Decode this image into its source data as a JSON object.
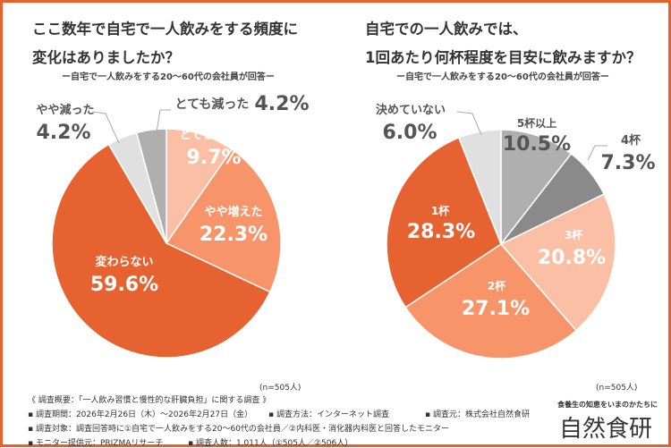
{
  "colors": {
    "border": "#e8602c",
    "deep_orange": "#e66231",
    "salmon": "#f79469",
    "light_salmon": "#fbbfa6",
    "gray": "#afafaf",
    "dark_gray": "#8a8a8a",
    "light_gray": "#e0e0e0",
    "text": "#4a4a4a"
  },
  "chart_data": [
    {
      "type": "pie",
      "title": "ここ数年で自宅で一人飲みをする頻度に変化はありましたか？",
      "title_lines": [
        "ここ数年で自宅で一人飲みをする頻度に",
        "変化はありましたか？"
      ],
      "subtitle": "ー自宅で一人飲みをする20〜60代の会社員が回答ー",
      "n_label": "(n=505人)",
      "slices": [
        {
          "label": "とても増えた",
          "value": 9.7,
          "display": "9.7%",
          "color": "#fbbfa6"
        },
        {
          "label": "やや増えた",
          "value": 22.3,
          "display": "22.3%",
          "color": "#f79469"
        },
        {
          "label": "変わらない",
          "value": 59.6,
          "display": "59.6%",
          "color": "#e66231"
        },
        {
          "label": "やや減った",
          "value": 4.2,
          "display": "4.2%",
          "color": "#e0e0e0"
        },
        {
          "label": "とても減った",
          "value": 4.2,
          "display": "4.2%",
          "color": "#afafaf"
        }
      ]
    },
    {
      "type": "pie",
      "title": "自宅での一人飲みでは、1回あたり何杯程度を目安に飲みますか？",
      "title_lines": [
        "自宅での一人飲みでは、",
        "1回あたり何杯程度を目安に飲みますか？"
      ],
      "subtitle": "ー自宅で一人飲みをする20〜60代の会社員が回答ー",
      "n_label": "(n=505人)",
      "slices": [
        {
          "label": "5杯以上",
          "value": 10.5,
          "display": "10.5%",
          "color": "#afafaf"
        },
        {
          "label": "4杯",
          "value": 7.3,
          "display": "7.3%",
          "color": "#8a8a8a"
        },
        {
          "label": "3杯",
          "value": 20.8,
          "display": "20.8%",
          "color": "#fbbfa6"
        },
        {
          "label": "2杯",
          "value": 27.1,
          "display": "27.1%",
          "color": "#f79469"
        },
        {
          "label": "1杯",
          "value": 28.3,
          "display": "28.3%",
          "color": "#e66231"
        },
        {
          "label": "決めていない",
          "value": 6.0,
          "display": "6.0%",
          "color": "#e0e0e0"
        }
      ]
    }
  ],
  "footer": {
    "overview": "《 調査概要：「一人飲み習慣と慢性的な肝臓負担」に関する調査 》",
    "period": "▪ 調査期間：2026年2月26日（木）〜2026年2月27日（金）",
    "method": "▪ 調査方法：インターネット調査",
    "source": "▪ 調査元：株式会社自然食研",
    "target": "▪ 調査対象：調査回答時に①自宅で一人飲みをする20〜60代の会社員／②内科医・消化器内科医と回答したモニター",
    "monitor": "▪ モニター提供元：PRIZMAリサーチ",
    "count": "▪ 調査人数：1,011人（①505人／②506人）"
  },
  "logo": {
    "tagline": "食養生の知恵をいまのかたちに",
    "name": "自然食研"
  }
}
